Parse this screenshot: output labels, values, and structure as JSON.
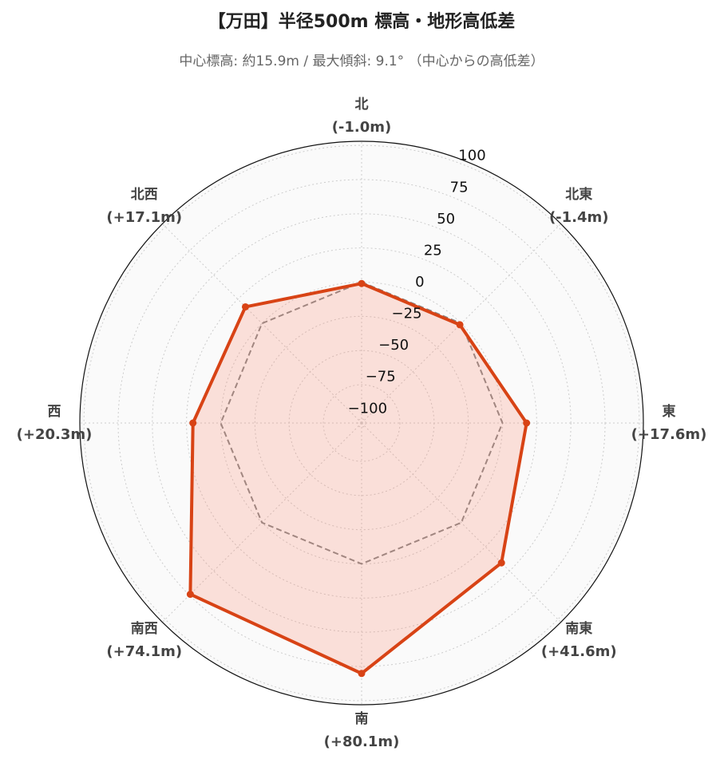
{
  "chart_data": {
    "type": "radar",
    "title": "【万田】半径500m 標高・地形高低差",
    "subtitle": "中心標高: 約15.9m / 最大傾斜: 9.1° （中心からの高低差）",
    "categories": [
      "北",
      "北東",
      "東",
      "南東",
      "南",
      "南西",
      "西",
      "北西"
    ],
    "values": [
      -1.0,
      -1.4,
      17.6,
      41.6,
      80.1,
      74.1,
      20.3,
      17.1
    ],
    "value_labels": [
      "(-1.0m)",
      "(-1.4m)",
      "(+17.6m)",
      "(+41.6m)",
      "(+80.1m)",
      "(+74.1m)",
      "(+20.3m)",
      "(+17.1m)"
    ],
    "color": "#d84315",
    "baseline": 0,
    "ylim": [
      -103,
      103
    ],
    "yticks": [
      {
        "value": -100,
        "label": "−100"
      },
      {
        "value": -75,
        "label": "−75"
      },
      {
        "value": -50,
        "label": "−50"
      },
      {
        "value": -25,
        "label": "−25"
      },
      0,
      25,
      50,
      75,
      100
    ],
    "grid": true
  }
}
